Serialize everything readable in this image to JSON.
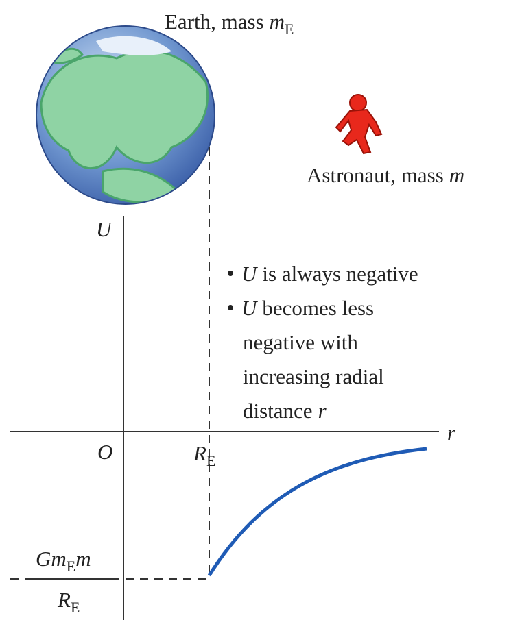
{
  "earth_label": {
    "text": "Earth, mass",
    "symbol": "m",
    "subscript": "E"
  },
  "astronaut_label": {
    "text": "Astronaut, mass",
    "symbol": "m"
  },
  "axes": {
    "y_label": "U",
    "x_label": "r",
    "origin": "O",
    "radius_label": {
      "symbol": "R",
      "subscript": "E"
    }
  },
  "notes": [
    {
      "symbol": "U",
      "lines": [
        "is always negative"
      ]
    },
    {
      "symbol": "U",
      "lines": [
        "becomes less",
        "negative with",
        "increasing radial",
        "distance"
      ],
      "end_symbol": "r"
    }
  ],
  "min_value_label": {
    "numerator": [
      "Gm",
      "E",
      "m"
    ],
    "denominator": [
      "R",
      "E"
    ]
  }
}
